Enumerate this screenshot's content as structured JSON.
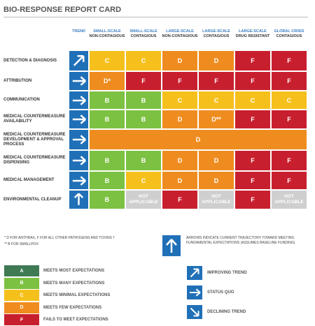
{
  "header": {
    "title": "BIO-RESPONSE REPORT CARD"
  },
  "table": {
    "columns": [
      {
        "title": "TREND"
      },
      {
        "title": "SMALL-SCALE",
        "sub": "NON-CONTAGIOUS"
      },
      {
        "title": "SMALL-SCALE",
        "sub": "CONTAGIOUS"
      },
      {
        "title": "LARGE-SCALE",
        "sub": "NON-CONTAGIOUS"
      },
      {
        "title": "LARGE-SCALE",
        "sub": "CONTAGIOUS"
      },
      {
        "title": "LARGE-SCALE",
        "sub": "DRUG RESISTANT"
      },
      {
        "title": "GLOBAL CRISIS",
        "sub": "CONTAGIOUS"
      }
    ],
    "rows": [
      {
        "label": "DETECTION & DIAGNOSIS",
        "grades": [
          "C",
          "C",
          "D",
          "D",
          "F",
          "F"
        ]
      },
      {
        "label": "ATTRIBUTION",
        "grades": [
          "D*",
          "F",
          "F",
          "F",
          "F",
          "F"
        ]
      },
      {
        "label": "COMMUNICATION",
        "grades": [
          "B",
          "B",
          "C",
          "C",
          "C",
          "C"
        ]
      },
      {
        "label": "MEDICAL COUNTERMEASURE AVAILABILITY",
        "grades": [
          "B",
          "B",
          "D",
          "D**",
          "F",
          "F"
        ]
      },
      {
        "label": "MEDICAL COUNTERMEASURE DEVELOPMENT & APPROVAL PROCESS",
        "grades": [
          "D"
        ]
      },
      {
        "label": "MEDICAL COUNTERMEASURE DISPENSING",
        "grades": [
          "B",
          "B",
          "D",
          "D",
          "F",
          "F"
        ]
      },
      {
        "label": "MEDICAL MANAGEMENT",
        "grades": [
          "B",
          "C",
          "D",
          "D",
          "F",
          "F"
        ]
      },
      {
        "label": "ENVIRONMENTAL CLEANUP",
        "grades": [
          "B",
          "NOT APPLICABLE",
          "F",
          "NOT APPLICABLE",
          "F",
          "NOT APPLICABLE"
        ]
      }
    ]
  },
  "footnotes": [
    "* D FOR ANTHRAX, F FOR ALL OTHER PATHOGENS AND TOXINS †",
    "** B FOR SMALLPOX"
  ],
  "arrow_note": "ARROWS INDICATE CURRENT TRAJECTORY TOWARD MEETING FUNDAMENTAL EXPECTATIONS (ASSUMES BASELINE FUNDING)",
  "legend": [
    {
      "grade": "A",
      "label": "MEETS MOST EXPECTATIONS",
      "color": "#3f7a55"
    },
    {
      "grade": "B",
      "label": "MEETS MANY EXPECTATIONS",
      "color": "#7cc142"
    },
    {
      "grade": "C",
      "label": "MEETS MINIMAL EXPECTATIONS",
      "color": "#f6c01c"
    },
    {
      "grade": "D",
      "label": "MEETS FEW EXPECTATIONS",
      "color": "#ef8c1f"
    },
    {
      "grade": "F",
      "label": "FAILS TO MEET EXPECTATIONS",
      "color": "#c81f2e"
    }
  ],
  "trend_legend": [
    "IMPROVING TREND",
    "STATUS QUO",
    "DECLINING TREND"
  ]
}
